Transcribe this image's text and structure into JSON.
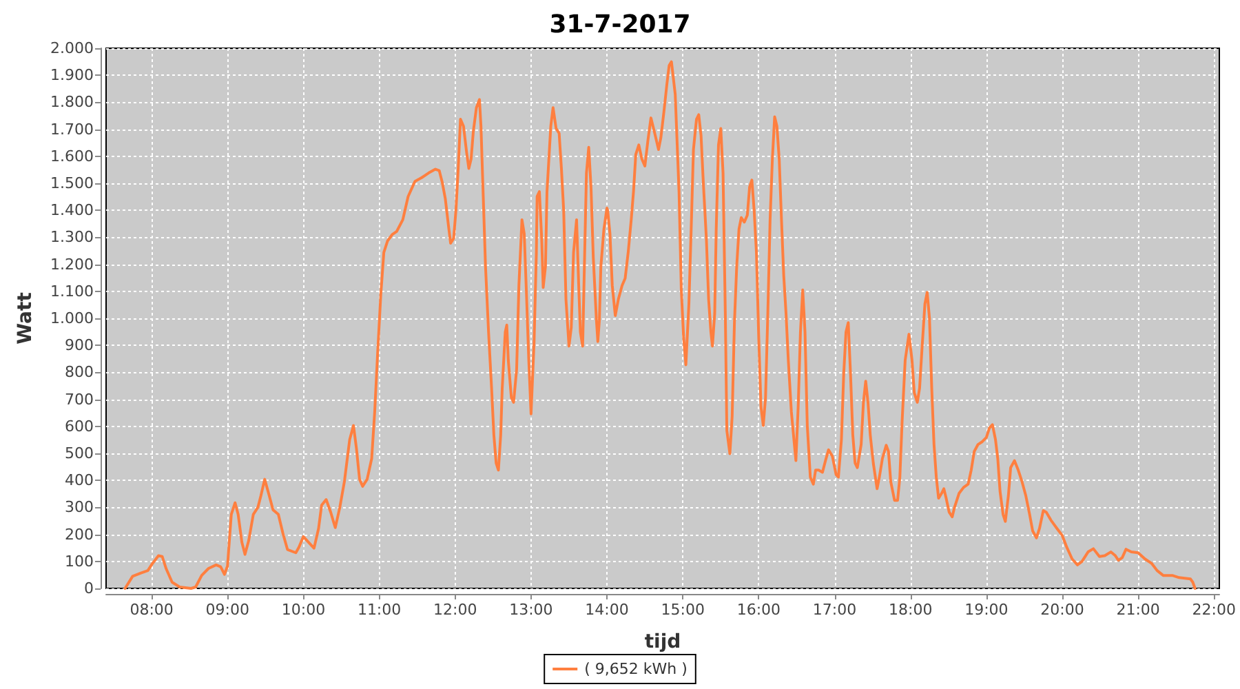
{
  "chart_data": {
    "type": "line",
    "title": "31-7-2017",
    "xlabel": "tijd",
    "ylabel": "Watt",
    "xlim": [
      7.4,
      22.07
    ],
    "xticks": [
      {
        "value": 8,
        "label": "08:00"
      },
      {
        "value": 9,
        "label": "09:00"
      },
      {
        "value": 10,
        "label": "10:00"
      },
      {
        "value": 11,
        "label": "11:00"
      },
      {
        "value": 12,
        "label": "12:00"
      },
      {
        "value": 13,
        "label": "13:00"
      },
      {
        "value": 14,
        "label": "14:00"
      },
      {
        "value": 15,
        "label": "15:00"
      },
      {
        "value": 16,
        "label": "16:00"
      },
      {
        "value": 17,
        "label": "17:00"
      },
      {
        "value": 18,
        "label": "18:00"
      },
      {
        "value": 19,
        "label": "19:00"
      },
      {
        "value": 20,
        "label": "20:00"
      },
      {
        "value": 21,
        "label": "21:00"
      },
      {
        "value": 22,
        "label": "22:00"
      }
    ],
    "ylim": [
      0,
      2000
    ],
    "yticks": [
      0,
      100,
      200,
      300,
      400,
      500,
      600,
      700,
      800,
      900,
      {
        "value": 1000,
        "label": "1.000"
      },
      {
        "value": 1100,
        "label": "1.100"
      },
      {
        "value": 1200,
        "label": "1.200"
      },
      {
        "value": 1300,
        "label": "1.300"
      },
      {
        "value": 1400,
        "label": "1.400"
      },
      {
        "value": 1500,
        "label": "1.500"
      },
      {
        "value": 1600,
        "label": "1.600"
      },
      {
        "value": 1700,
        "label": "1.700"
      },
      {
        "value": 1800,
        "label": "1.800"
      },
      {
        "value": 1900,
        "label": "1.900"
      },
      {
        "value": 2000,
        "label": "2.000"
      }
    ],
    "grid": true,
    "legend": "bottom",
    "marker": "none",
    "series": [
      {
        "name": "( 9,652 kWh )",
        "color": "#ff7f3f",
        "x": [
          7.65,
          7.75,
          7.86,
          7.95,
          8.01,
          8.09,
          8.14,
          8.19,
          8.27,
          8.37,
          8.52,
          8.58,
          8.66,
          8.75,
          8.85,
          8.91,
          8.96,
          9.0,
          9.05,
          9.1,
          9.14,
          9.19,
          9.23,
          9.28,
          9.34,
          9.4,
          9.44,
          9.49,
          9.55,
          9.6,
          9.67,
          9.73,
          9.79,
          9.9,
          9.94,
          10.0,
          10.06,
          10.14,
          10.2,
          10.24,
          10.3,
          10.36,
          10.42,
          10.48,
          10.54,
          10.61,
          10.66,
          10.7,
          10.74,
          10.78,
          10.84,
          10.9,
          10.94,
          10.98,
          11.02,
          11.06,
          11.11,
          11.17,
          11.23,
          11.31,
          11.38,
          11.47,
          11.56,
          11.65,
          11.74,
          11.79,
          11.83,
          11.87,
          11.91,
          11.94,
          11.98,
          12.01,
          12.04,
          12.07,
          12.11,
          12.15,
          12.18,
          12.21,
          12.24,
          12.28,
          12.32,
          12.34,
          12.37,
          12.4,
          12.44,
          12.48,
          12.51,
          12.54,
          12.57,
          12.6,
          12.62,
          12.66,
          12.68,
          12.7,
          12.74,
          12.77,
          12.81,
          12.84,
          12.88,
          12.91,
          12.94,
          12.97,
          13.0,
          13.04,
          13.07,
          13.08,
          13.11,
          13.14,
          13.16,
          13.19,
          13.21,
          13.26,
          13.29,
          13.33,
          13.37,
          13.4,
          13.43,
          13.46,
          13.5,
          13.53,
          13.56,
          13.6,
          13.63,
          13.65,
          13.68,
          13.7,
          13.73,
          13.76,
          13.79,
          13.82,
          13.86,
          13.88,
          13.9,
          13.92,
          13.96,
          14.0,
          14.01,
          14.04,
          14.07,
          14.11,
          14.15,
          14.2,
          14.24,
          14.28,
          14.32,
          14.35,
          14.38,
          14.42,
          14.46,
          14.5,
          14.54,
          14.58,
          14.63,
          14.68,
          14.71,
          14.75,
          14.79,
          14.82,
          14.85,
          14.9,
          14.95,
          14.98,
          15.01,
          15.04,
          15.08,
          15.11,
          15.14,
          15.18,
          15.21,
          15.24,
          15.27,
          15.31,
          15.34,
          15.37,
          15.39,
          15.42,
          15.44,
          15.47,
          15.5,
          15.53,
          15.56,
          15.58,
          15.62,
          15.65,
          15.68,
          15.71,
          15.74,
          15.77,
          15.81,
          15.85,
          15.88,
          15.91,
          15.94,
          15.97,
          16.0,
          16.03,
          16.06,
          16.09,
          16.12,
          16.15,
          16.18,
          16.21,
          16.24,
          16.27,
          16.3,
          16.33,
          16.36,
          16.39,
          16.43,
          16.47,
          16.49,
          16.52,
          16.55,
          16.58,
          16.61,
          16.64,
          16.68,
          16.72,
          16.75,
          16.79,
          16.84,
          16.88,
          16.92,
          16.97,
          17.02,
          17.05,
          17.09,
          17.12,
          17.15,
          17.18,
          17.21,
          17.24,
          17.27,
          17.3,
          17.35,
          17.38,
          17.41,
          17.44,
          17.47,
          17.51,
          17.56,
          17.59,
          17.63,
          17.68,
          17.71,
          17.74,
          17.79,
          17.83,
          17.86,
          17.89,
          17.93,
          17.98,
          18.02,
          18.05,
          18.09,
          18.12,
          18.15,
          18.19,
          18.22,
          18.25,
          18.28,
          18.31,
          18.34,
          18.37,
          18.41,
          18.44,
          18.47,
          18.51,
          18.55,
          18.58,
          18.64,
          18.7,
          18.76,
          18.8,
          18.84,
          18.89,
          18.94,
          19.0,
          19.04,
          19.08,
          19.12,
          19.15,
          19.18,
          19.22,
          19.25,
          19.29,
          19.32,
          19.37,
          19.42,
          19.47,
          19.52,
          19.57,
          19.61,
          19.66,
          19.7,
          19.75,
          19.79,
          19.85,
          19.93,
          20.0,
          20.06,
          20.13,
          20.2,
          20.26,
          20.34,
          20.41,
          20.49,
          20.56,
          20.64,
          20.7,
          20.74,
          20.79,
          20.84,
          20.91,
          21.0,
          21.09,
          21.18,
          21.25,
          21.33,
          21.45,
          21.54,
          21.69,
          21.72,
          21.75
        ],
        "values": [
          0,
          45,
          57,
          66,
          92,
          121,
          118,
          74,
          23,
          5,
          0,
          5,
          48,
          74,
          87,
          80,
          52,
          83,
          274,
          317,
          274,
          170,
          126,
          178,
          274,
          300,
          343,
          404,
          343,
          291,
          274,
          204,
          144,
          132,
          152,
          192,
          173,
          149,
          222,
          308,
          329,
          282,
          225,
          300,
          395,
          551,
          603,
          516,
          404,
          378,
          404,
          481,
          655,
          880,
          1088,
          1244,
          1287,
          1310,
          1322,
          1365,
          1451,
          1507,
          1521,
          1538,
          1552,
          1547,
          1503,
          1443,
          1347,
          1278,
          1296,
          1399,
          1555,
          1737,
          1711,
          1616,
          1555,
          1590,
          1694,
          1780,
          1810,
          1711,
          1451,
          1192,
          949,
          741,
          568,
          464,
          438,
          568,
          741,
          949,
          975,
          845,
          707,
          689,
          811,
          1122,
          1365,
          1313,
          1088,
          845,
          646,
          914,
          1244,
          1451,
          1469,
          1296,
          1114,
          1192,
          1469,
          1711,
          1780,
          1703,
          1685,
          1555,
          1399,
          1070,
          897,
          966,
          1244,
          1365,
          1105,
          949,
          897,
          1157,
          1538,
          1633,
          1486,
          1226,
          1001,
          914,
          992,
          1192,
          1330,
          1408,
          1399,
          1313,
          1122,
          1010,
          1070,
          1122,
          1148,
          1244,
          1365,
          1469,
          1607,
          1642,
          1590,
          1564,
          1659,
          1742,
          1685,
          1625,
          1668,
          1763,
          1867,
          1936,
          1950,
          1829,
          1469,
          1105,
          932,
          828,
          1053,
          1330,
          1625,
          1737,
          1754,
          1677,
          1503,
          1296,
          1070,
          949,
          897,
          1018,
          1330,
          1642,
          1703,
          1538,
          1018,
          585,
          499,
          637,
          984,
          1192,
          1330,
          1373,
          1356,
          1382,
          1486,
          1512,
          1399,
          1244,
          932,
          672,
          603,
          707,
          1018,
          1365,
          1590,
          1746,
          1711,
          1590,
          1365,
          1157,
          1018,
          845,
          655,
          533,
          473,
          672,
          949,
          1105,
          949,
          603,
          412,
          386,
          438,
          438,
          430,
          473,
          513,
          490,
          421,
          412,
          551,
          793,
          949,
          984,
          793,
          568,
          464,
          447,
          533,
          689,
          767,
          689,
          568,
          464,
          369,
          412,
          481,
          530,
          507,
          395,
          326,
          326,
          412,
          620,
          845,
          941,
          845,
          724,
          689,
          741,
          880,
          1053,
          1096,
          1001,
          741,
          533,
          412,
          334,
          352,
          369,
          334,
          282,
          265,
          300,
          352,
          374,
          386,
          438,
          507,
          533,
          542,
          559,
          594,
          606,
          551,
          481,
          360,
          274,
          248,
          343,
          447,
          473,
          438,
          395,
          343,
          274,
          213,
          187,
          222,
          288,
          282,
          253,
          222,
          196,
          152,
          109,
          87,
          100,
          135,
          147,
          118,
          121,
          135,
          121,
          104,
          114,
          145,
          135,
          132,
          109,
          92,
          66,
          48,
          48,
          40,
          35,
          23,
          0
        ]
      }
    ]
  }
}
